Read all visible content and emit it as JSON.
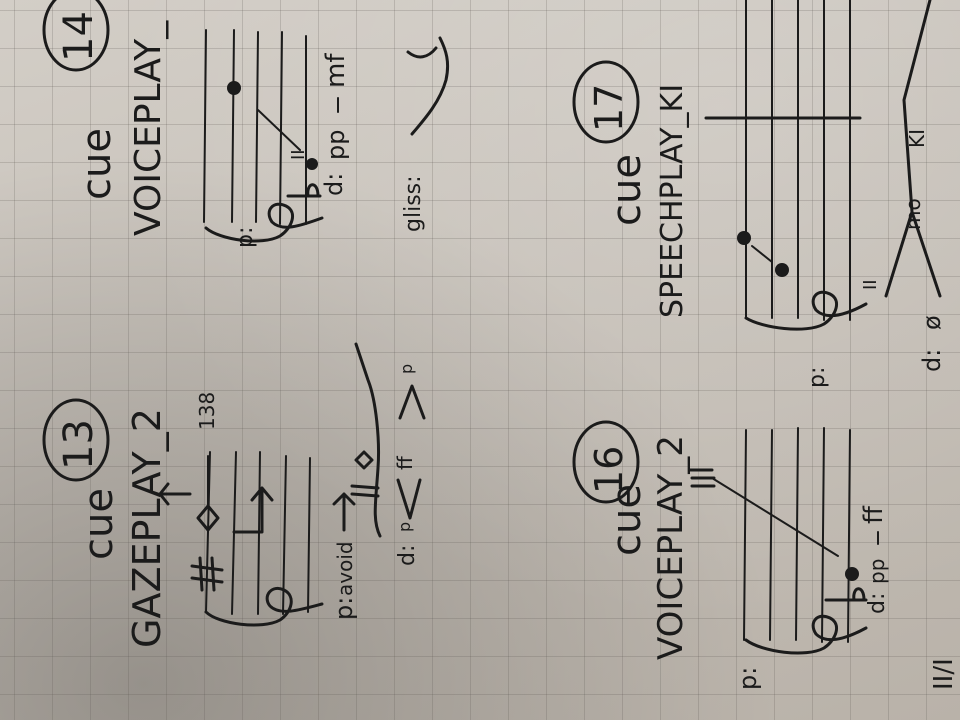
{
  "photo": {
    "subject": "handwritten music cues on graph paper",
    "orientation": "rotated 90 degrees clockwise",
    "colors": {
      "paper": "#c9c3bb",
      "ink": "#1b1b1b",
      "grid": "#9a948c"
    }
  },
  "cues": [
    {
      "word": "cue",
      "number": "13",
      "title": "GAZEPLAY_2",
      "tempo": "138",
      "staff_label": "p:",
      "instruction": "avoid",
      "dynamic_prefix": "d:",
      "dyn_start": "p",
      "dyn_peak": "ff",
      "dyn_end": "p"
    },
    {
      "word": "cue",
      "number": "14",
      "title": "VOICEPLAY_",
      "staff_label": "p:",
      "roman": "II",
      "dynamic_prefix": "d:",
      "dyn_start": "pp",
      "dyn_end": "mf",
      "gliss": "gliss:"
    },
    {
      "word": "cue",
      "number": "16",
      "title": "VOICEPLAY_2",
      "staff_label": "p:",
      "dynamic_prefix": "d:",
      "dyn_start": "pp",
      "dyn_end": "ff",
      "side_marking": "II/I"
    },
    {
      "word": "cue",
      "number": "17",
      "title": "SPEECHPLAY_KI",
      "staff_label": "p:",
      "roman": "II",
      "dynamic_prefix": "d:",
      "dyn_start": "ø",
      "dyn_end": "mo",
      "extra": "KI"
    }
  ]
}
